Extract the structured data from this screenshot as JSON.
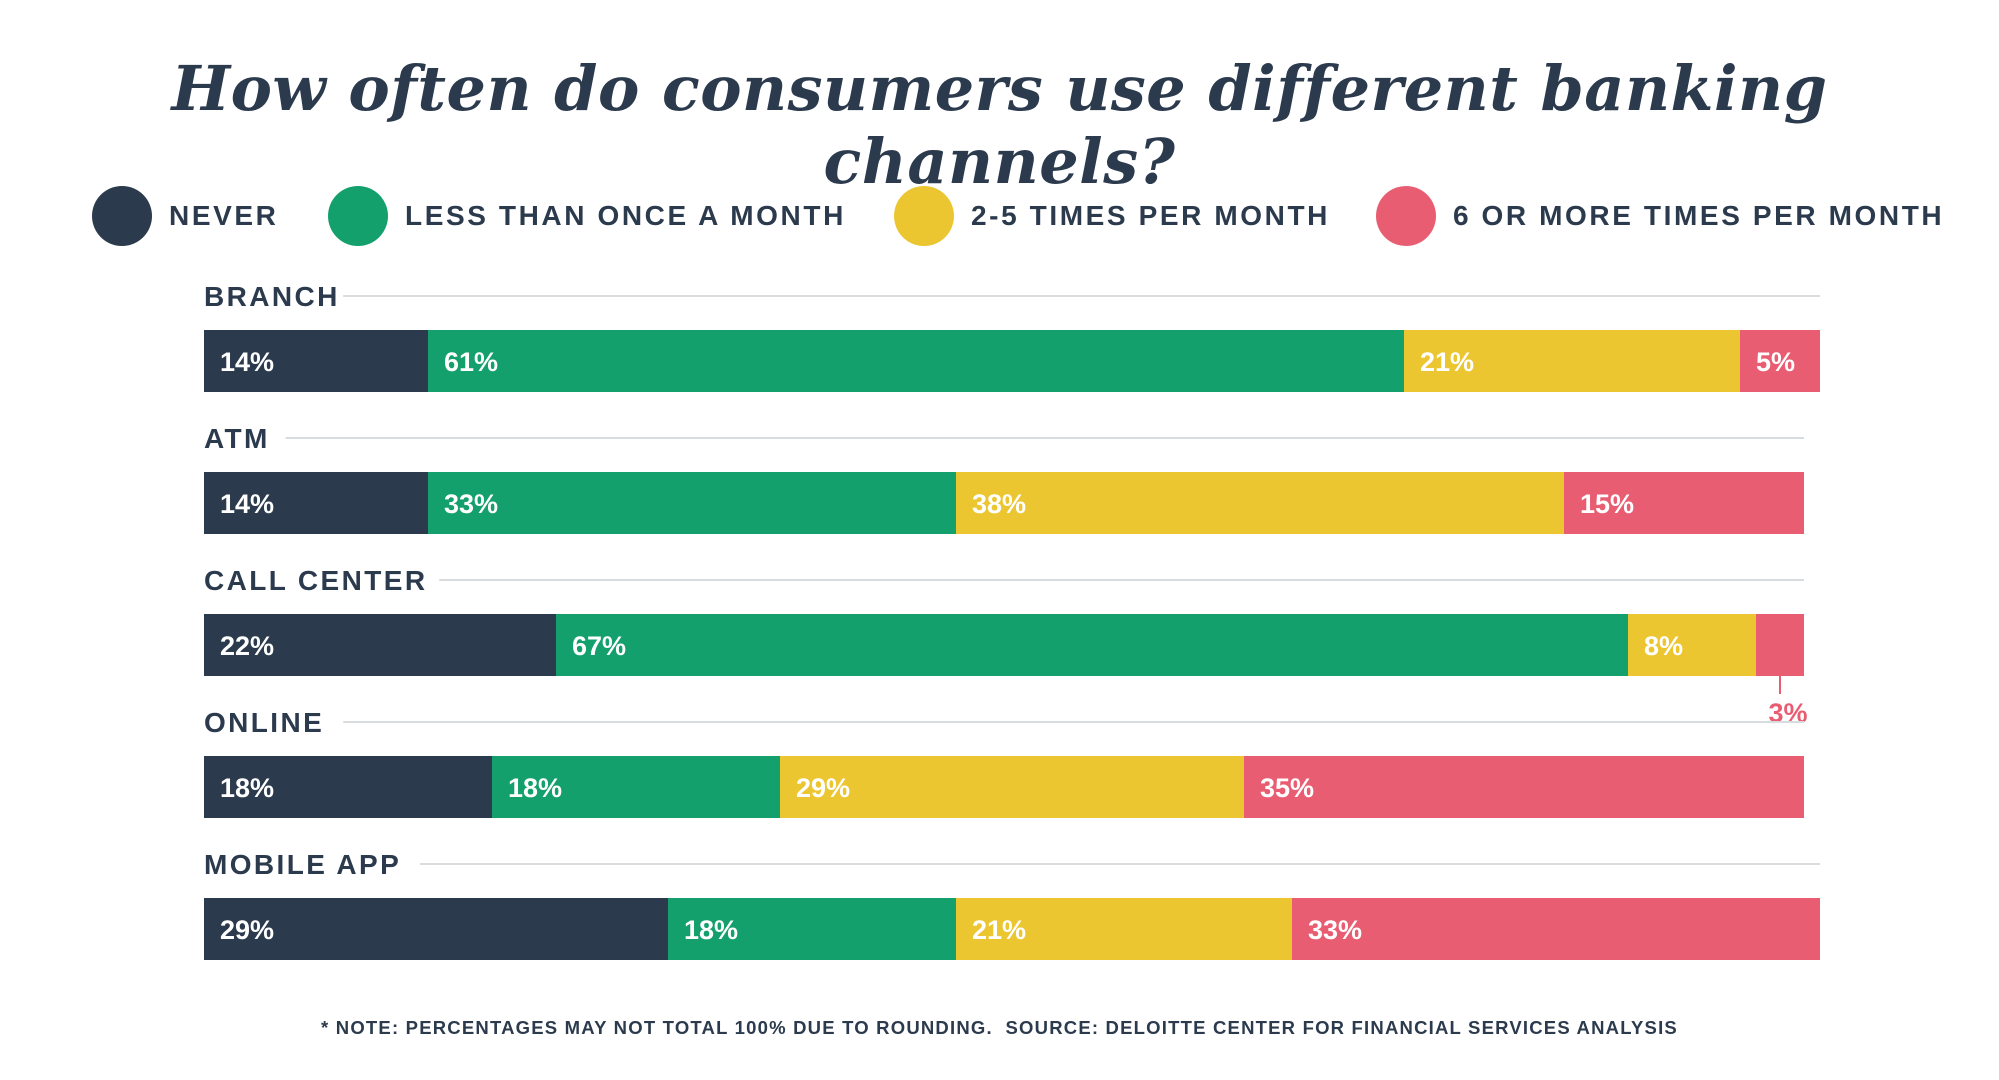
{
  "chart_data": {
    "type": "bar",
    "orientation": "horizontal",
    "stacked": true,
    "title": "How often do consumers use different banking channels?",
    "categories": [
      "BRANCH",
      "ATM",
      "CALL CENTER",
      "ONLINE",
      "MOBILE APP"
    ],
    "series": [
      {
        "name": "NEVER",
        "color": "#2b3a4d",
        "values": [
          14,
          14,
          22,
          18,
          29
        ],
        "labels": [
          "14%",
          "14%",
          "22%",
          "18%",
          "29%"
        ]
      },
      {
        "name": "LESS THAN ONCE A MONTH",
        "color": "#14a06c",
        "values": [
          61,
          33,
          67,
          18,
          18
        ],
        "labels": [
          "61%",
          "33%",
          "67%",
          "18%",
          "18%"
        ]
      },
      {
        "name": "2-5 TIMES PER MONTH",
        "color": "#ecc631",
        "values": [
          21,
          38,
          8,
          29,
          21
        ],
        "labels": [
          "21%",
          "38%",
          "8%",
          "29%",
          "21%"
        ]
      },
      {
        "name": "6 OR MORE TIMES PER MONTH",
        "color": "#e95d72",
        "values": [
          5,
          15,
          3,
          35,
          33
        ],
        "labels": [
          "5%",
          "15%",
          "3%",
          "35%",
          "33%"
        ]
      }
    ],
    "legend_position": "top",
    "note": "* NOTE: PERCENTAGES MAY NOT TOTAL 100% DUE TO ROUNDING.  SOURCE: DELOITTE CENTER FOR FINANCIAL SERVICES ANALYSIS"
  }
}
